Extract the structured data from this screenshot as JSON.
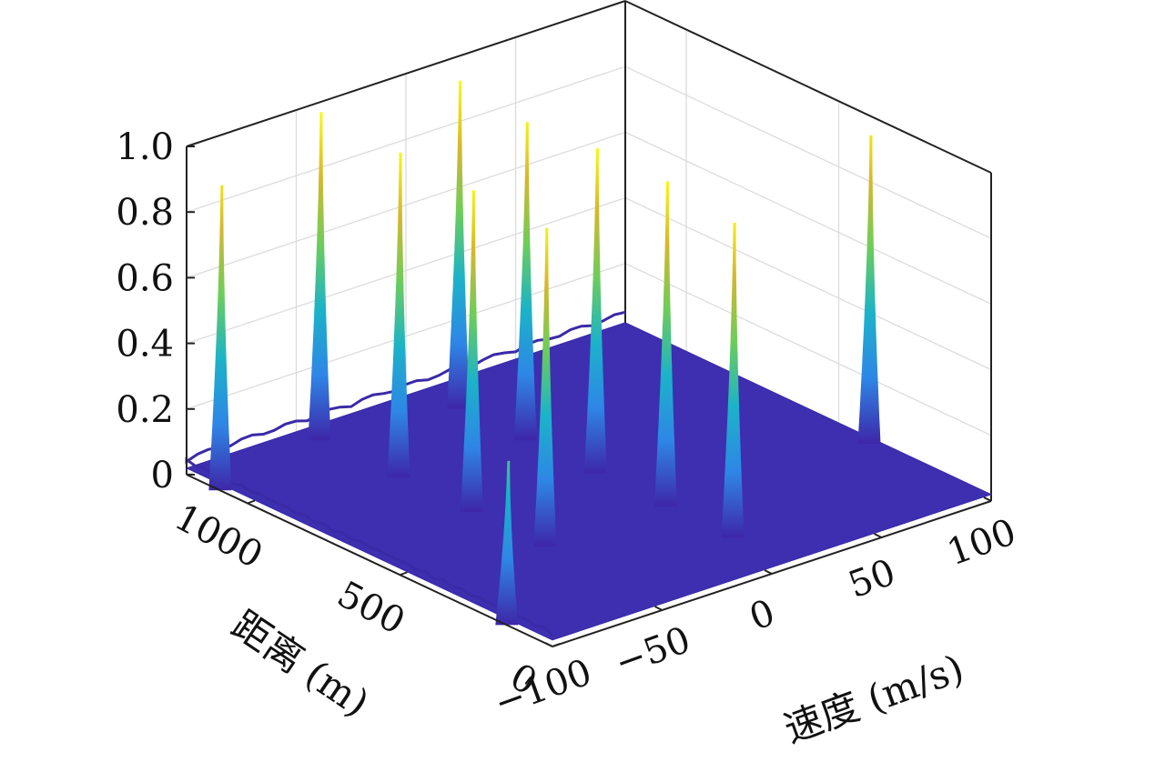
{
  "chart_data": {
    "type": "surface",
    "title": "",
    "xlabel": "速度 (m/s)",
    "ylabel": "距离 (m)",
    "zlabel": "",
    "xlim": [
      -100,
      100
    ],
    "ylim": [
      0,
      1200
    ],
    "zlim": [
      0,
      1
    ],
    "x_ticks": [
      -100,
      -50,
      0,
      50,
      100
    ],
    "x_tick_labels": [
      "−100",
      "−50",
      "0",
      "50",
      "100"
    ],
    "y_ticks": [
      0,
      500,
      1000
    ],
    "y_tick_labels": [
      "0",
      "500",
      "1000"
    ],
    "z_ticks": [
      0,
      0.2,
      0.4,
      0.6,
      0.8,
      1.0
    ],
    "z_tick_labels": [
      "0",
      "0.2",
      "0.4",
      "0.6",
      "0.8",
      "1.0"
    ],
    "colormap": [
      "#3e26a8",
      "#2e86e6",
      "#1cb3c8",
      "#6dcd59",
      "#d7b72d",
      "#f9fb0e"
    ],
    "grid": true,
    "peaks": [
      {
        "velocity": -100,
        "range": 1090,
        "amplitude": 0.93
      },
      {
        "velocity": -100,
        "range": 150,
        "amplitude": 0.5
      },
      {
        "velocity": -45,
        "range": 1160,
        "amplitude": 1.0
      },
      {
        "velocity": -45,
        "range": 900,
        "amplitude": 0.99
      },
      {
        "velocity": -45,
        "range": 660,
        "amplitude": 0.98
      },
      {
        "velocity": -45,
        "range": 420,
        "amplitude": 0.97
      },
      {
        "velocity": 10,
        "range": 1100,
        "amplitude": 1.0
      },
      {
        "velocity": 10,
        "range": 880,
        "amplitude": 0.97
      },
      {
        "velocity": 10,
        "range": 650,
        "amplitude": 0.99
      },
      {
        "velocity": 10,
        "range": 420,
        "amplitude": 0.99
      },
      {
        "velocity": 10,
        "range": 200,
        "amplitude": 0.96
      },
      {
        "velocity": 100,
        "range": 400,
        "amplitude": 0.94
      }
    ]
  }
}
